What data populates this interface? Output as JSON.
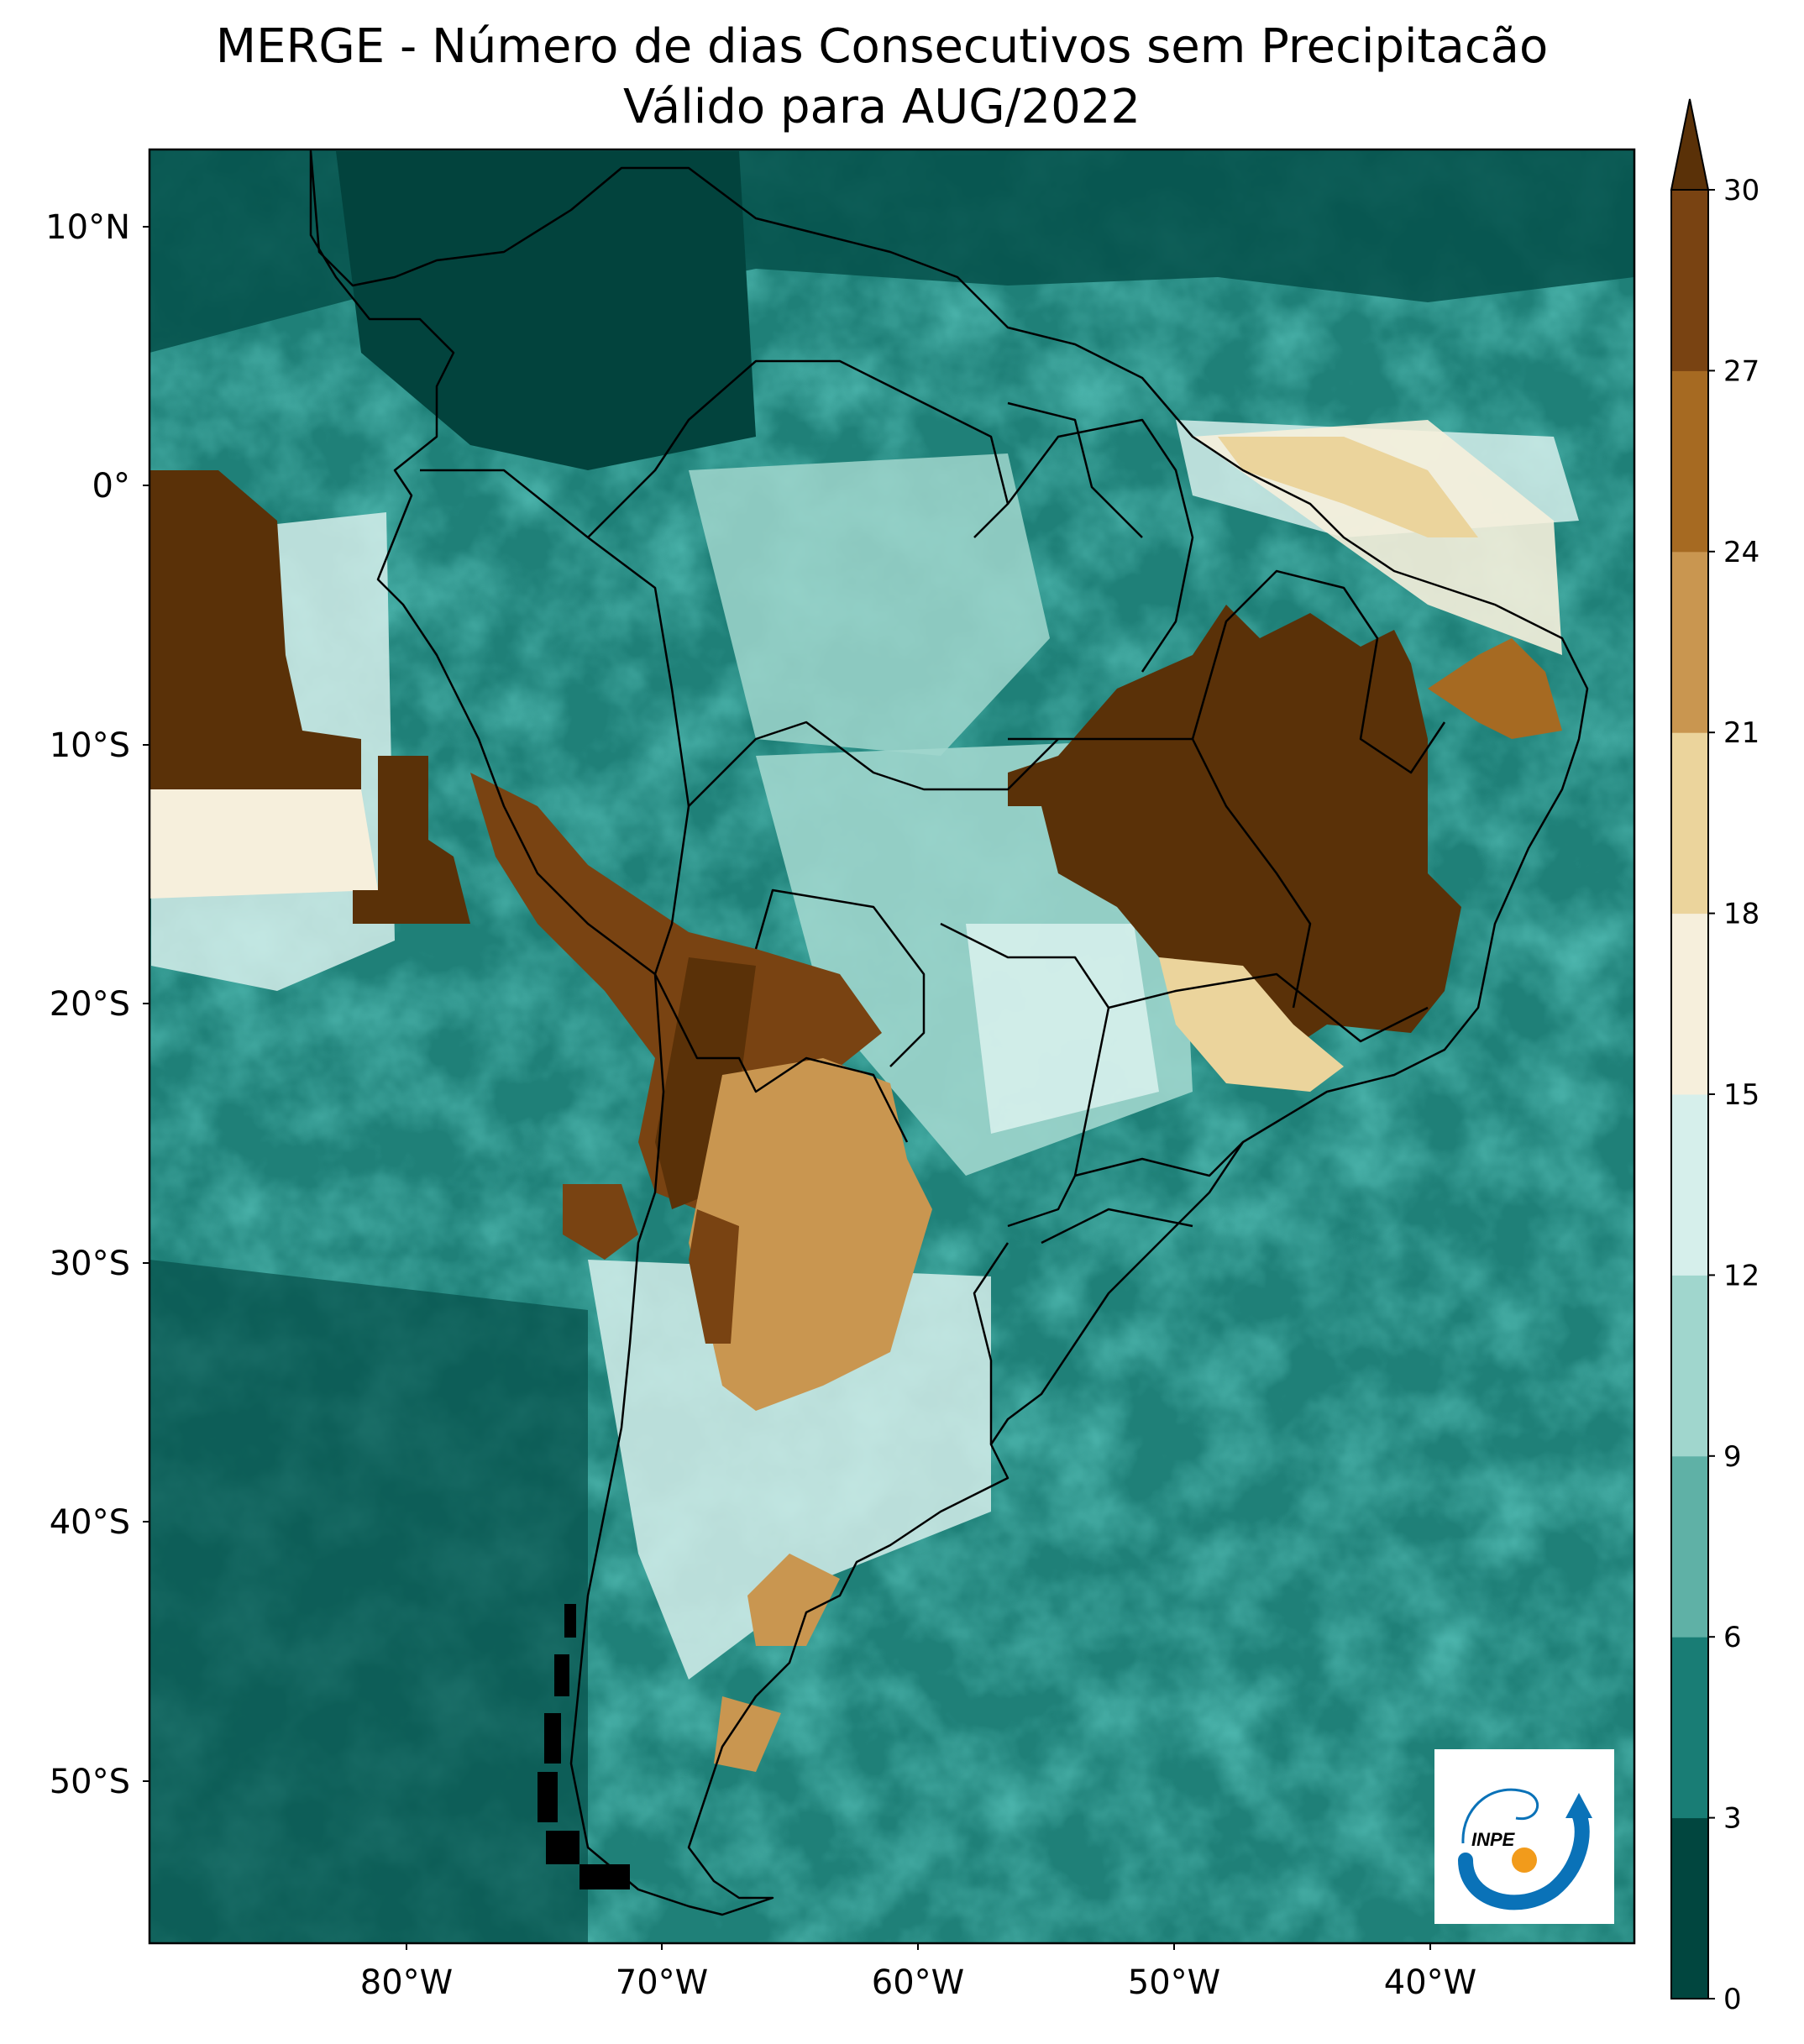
{
  "title": {
    "line1": "MERGE - Número de dias Consecutivos sem Precipitacão",
    "line2": "Válido para AUG/2022"
  },
  "lat_ticks": [
    "10°N",
    "0°",
    "10°S",
    "20°S",
    "30°S",
    "40°S",
    "50°S"
  ],
  "lon_ticks": [
    "80°W",
    "70°W",
    "60°W",
    "50°W",
    "40°W"
  ],
  "colorbar": {
    "ticks": [
      "0",
      "3",
      "6",
      "9",
      "12",
      "15",
      "18",
      "21",
      "24",
      "27",
      "30"
    ],
    "colors": [
      "#01463f",
      "#197d75",
      "#5fb1a6",
      "#a0d6cd",
      "#d6efeb",
      "#f6efdc",
      "#ebd49c",
      "#c99650",
      "#a66a22",
      "#794312"
    ],
    "extend_color": "#5a3108",
    "extend": "max"
  },
  "map": {
    "ocean_color": "#1f8078",
    "extent": {
      "lon": [
        -90,
        -32
      ],
      "lat": [
        -57,
        13
      ]
    },
    "dry_regions": [
      {
        "name": "central-brazil",
        "days": "27-30+"
      },
      {
        "name": "andes-altiplano",
        "days": "24-30+"
      },
      {
        "name": "central-argentina",
        "days": "21-24"
      },
      {
        "name": "pacific-peru",
        "days": "27-30+"
      }
    ]
  },
  "logo": {
    "text": "INPE"
  }
}
